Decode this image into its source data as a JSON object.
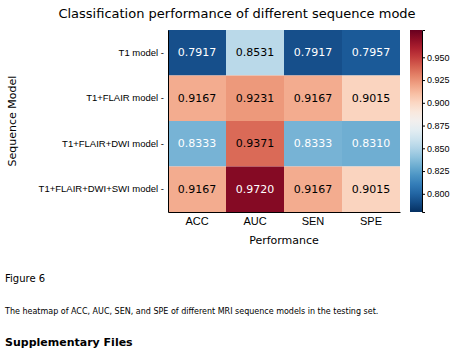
{
  "chart_data": {
    "type": "heatmap",
    "title": "Classification performance of different sequence mode",
    "xlabel": "Performance",
    "ylabel": "Sequence Model",
    "categories": [
      "ACC",
      "AUC",
      "SEN",
      "SPE"
    ],
    "rows": [
      "T1 model -",
      "T1+FLAIR model -",
      "T1+FLAIR+DWI model -",
      "T1+FLAIR+DWI+SWI model -"
    ],
    "values": [
      [
        0.7917,
        0.8531,
        0.7917,
        0.7957
      ],
      [
        0.9167,
        0.9231,
        0.9167,
        0.9015
      ],
      [
        0.8333,
        0.9371,
        0.8333,
        0.831
      ],
      [
        0.9167,
        0.972,
        0.9167,
        0.9015
      ]
    ],
    "value_labels": [
      [
        "0.7917",
        "0.8531",
        "0.7917",
        "0.7957"
      ],
      [
        "0.9167",
        "0.9231",
        "0.9167",
        "0.9015"
      ],
      [
        "0.8333",
        "0.9371",
        "0.8333",
        "0.8310"
      ],
      [
        "0.9167",
        "0.9720",
        "0.9167",
        "0.9015"
      ]
    ],
    "data_labels": true,
    "colorbar": {
      "range": [
        0.78,
        0.98
      ],
      "ticks": [
        {
          "value": 0.8,
          "label": "0.800"
        },
        {
          "value": 0.825,
          "label": "0.825"
        },
        {
          "value": 0.85,
          "label": "0.850"
        },
        {
          "value": 0.875,
          "label": "0.875"
        },
        {
          "value": 0.9,
          "label": "0.900"
        },
        {
          "value": 0.925,
          "label": "0.925"
        },
        {
          "value": 0.95,
          "label": "0.950"
        }
      ]
    },
    "annotations": [
      "Figure 6",
      "The heatmap of ACC, AUC, SEN, and SPE of different MRI sequence models in the testing set.",
      "Supplementary Files"
    ]
  }
}
